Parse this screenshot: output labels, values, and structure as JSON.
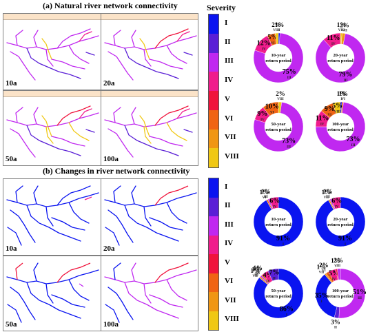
{
  "section_a_title": "(a) Natural river network connectivity",
  "section_b_title": "(b) Changes in river network connectivity",
  "legend": {
    "title": "Severity",
    "levels": [
      {
        "label": "I",
        "color": "#0a14f0"
      },
      {
        "label": "II",
        "color": "#5a1fd6"
      },
      {
        "label": "III",
        "color": "#c028f0"
      },
      {
        "label": "IV",
        "color": "#f01c8c"
      },
      {
        "label": "V",
        "color": "#f0143c"
      },
      {
        "label": "VI",
        "color": "#f06414"
      },
      {
        "label": "VII",
        "color": "#f09614"
      },
      {
        "label": "VIII",
        "color": "#f0c814"
      }
    ]
  },
  "map_panels_a": [
    {
      "label": "10a"
    },
    {
      "label": "20a"
    },
    {
      "label": "50a"
    },
    {
      "label": "100a"
    }
  ],
  "map_panels_b": [
    {
      "label": "10a"
    },
    {
      "label": "20a"
    },
    {
      "label": "50a"
    },
    {
      "label": "100a"
    }
  ],
  "chart_data": [
    {
      "type": "pie",
      "group": "a",
      "center_label": [
        "10-year",
        "return period"
      ],
      "slices": [
        {
          "cls": "I",
          "value": 1,
          "label": "1%"
        },
        {
          "cls": "III",
          "value": 75,
          "label": "75%"
        },
        {
          "cls": "IV",
          "value": 12,
          "label": "12%"
        },
        {
          "cls": "VI",
          "value": 5,
          "label": "5%"
        },
        {
          "cls": "VIII",
          "value": 2,
          "label": "2%"
        }
      ]
    },
    {
      "type": "pie",
      "group": "a",
      "center_label": [
        "20-year",
        "return period"
      ],
      "slices": [
        {
          "cls": "VIII",
          "value": 1,
          "label": "1%"
        },
        {
          "cls": "VII",
          "value": 2,
          "label": "2%"
        },
        {
          "cls": "III",
          "value": 79,
          "label": "79%"
        },
        {
          "cls": "IV",
          "value": 11,
          "label": "11%"
        }
      ]
    },
    {
      "type": "pie",
      "group": "a",
      "center_label": [
        "50-year",
        "return period"
      ],
      "slices": [
        {
          "cls": "VIII",
          "value": 2,
          "label": "2%"
        },
        {
          "cls": "III",
          "value": 73,
          "label": "73%"
        },
        {
          "cls": "IV",
          "value": 9,
          "label": "9%"
        },
        {
          "cls": "VI",
          "value": 10,
          "label": "10%"
        }
      ]
    },
    {
      "type": "pie",
      "group": "a",
      "center_label": [
        "100-year",
        "return period"
      ],
      "slices": [
        {
          "cls": "I",
          "value": 1,
          "label": "1%"
        },
        {
          "cls": "VI",
          "value": 1,
          "label": "1%"
        },
        {
          "cls": "III",
          "value": 73,
          "label": "73%"
        },
        {
          "cls": "IV",
          "value": 11,
          "label": "11%"
        },
        {
          "cls": "VI",
          "value": 9,
          "label": "9%"
        },
        {
          "cls": "VIII",
          "value": 5,
          "label": "5%"
        }
      ]
    },
    {
      "type": "pie",
      "group": "b",
      "center_label": [
        "10-year",
        "return period"
      ],
      "slices": [
        {
          "cls": "I",
          "value": 91,
          "label": "91%"
        },
        {
          "cls": "VI",
          "value": 1,
          "label": "1%"
        },
        {
          "cls": "III",
          "value": 1,
          "label": "1%"
        },
        {
          "cls": "IV",
          "value": 6,
          "label": "6%"
        }
      ]
    },
    {
      "type": "pie",
      "group": "b",
      "center_label": [
        "20-year",
        "return period"
      ],
      "slices": [
        {
          "cls": "I",
          "value": 91,
          "label": "91%"
        },
        {
          "cls": "VII",
          "value": 1,
          "label": "1%"
        },
        {
          "cls": "III",
          "value": 1,
          "label": "1%"
        },
        {
          "cls": "IV",
          "value": 6,
          "label": "6%"
        }
      ]
    },
    {
      "type": "pie",
      "group": "b",
      "center_label": [
        "50-year",
        "return period"
      ],
      "slices": [
        {
          "cls": "I",
          "value": 86,
          "label": "86%"
        },
        {
          "cls": "VII",
          "value": 1,
          "label": "1%"
        },
        {
          "cls": "III",
          "value": 1,
          "label": "1%"
        },
        {
          "cls": "VI",
          "value": 1,
          "label": "1%"
        },
        {
          "cls": "IV",
          "value": 4,
          "label": "4%"
        },
        {
          "cls": "II",
          "value": 7,
          "label": "7%"
        }
      ]
    },
    {
      "type": "pie",
      "group": "b",
      "center_label": [
        "100-year",
        "return period"
      ],
      "slices": [
        {
          "cls": "III",
          "value": 51,
          "label": "51%"
        },
        {
          "cls": "II",
          "value": 3,
          "label": "3%"
        },
        {
          "cls": "I",
          "value": 35,
          "label": "35%"
        },
        {
          "cls": "VII",
          "value": 1,
          "label": "1%"
        },
        {
          "cls": "VI",
          "value": 2,
          "label": "2%"
        },
        {
          "cls": "IV",
          "value": 5,
          "label": "5%"
        },
        {
          "cls": "V",
          "value": 1,
          "label": "1%"
        },
        {
          "cls": "III",
          "value": 2,
          "label": "2%"
        }
      ]
    }
  ]
}
